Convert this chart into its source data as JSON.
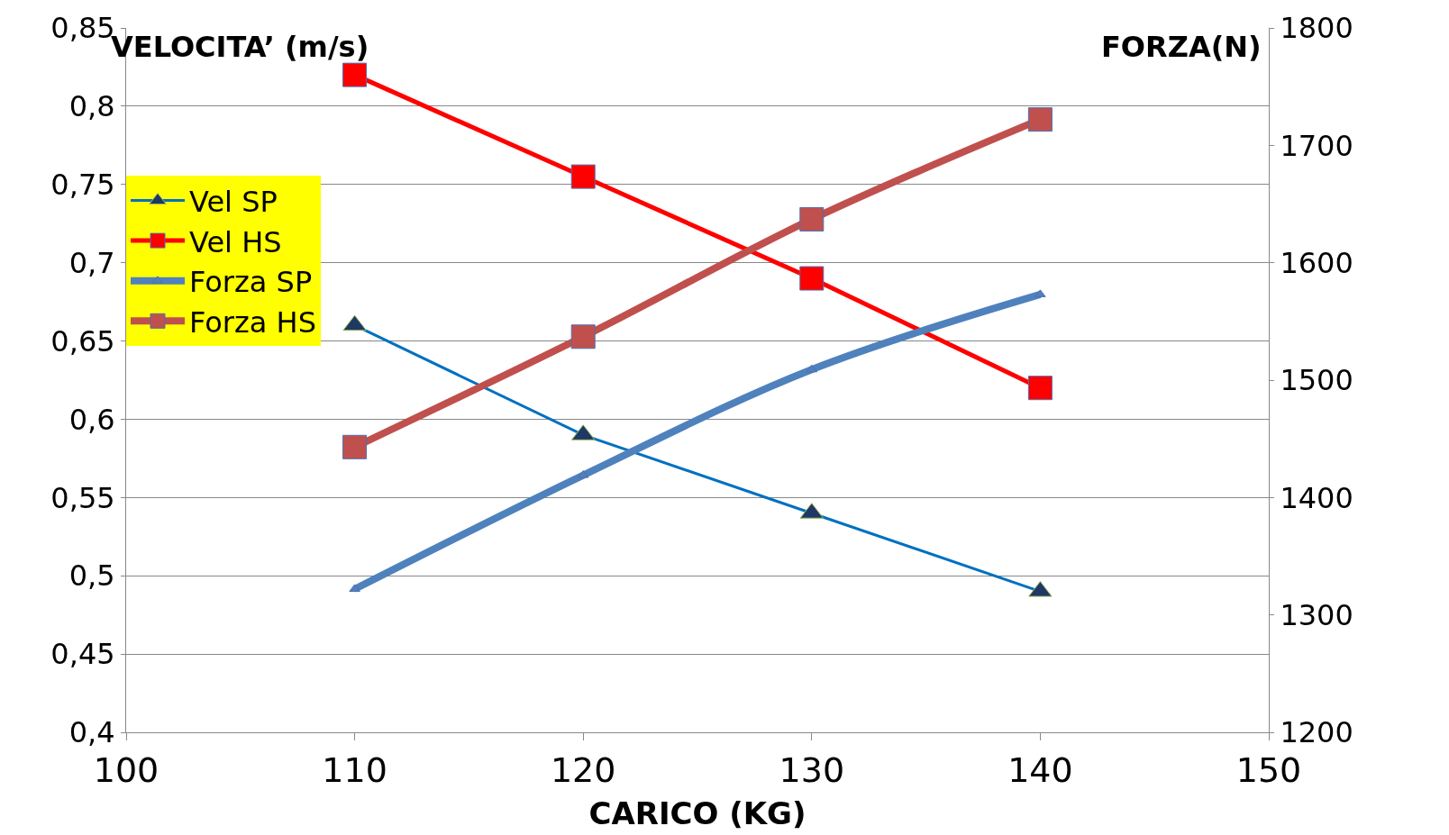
{
  "chart_data": {
    "type": "line",
    "xlabel": "CARICO (KG)",
    "ylabel": "VELOCITA’ (m/s)",
    "y2label": "FORZA(N)",
    "x": [
      110,
      120,
      130,
      140
    ],
    "xlim": [
      100,
      150
    ],
    "xticks": [
      100,
      110,
      120,
      130,
      140,
      150
    ],
    "ylim": [
      0.4,
      0.85
    ],
    "yticks": [
      {
        "value": 0.4,
        "label": "0,4"
      },
      {
        "value": 0.45,
        "label": "0,45"
      },
      {
        "value": 0.5,
        "label": "0,5"
      },
      {
        "value": 0.55,
        "label": "0,55"
      },
      {
        "value": 0.6,
        "label": "0,6"
      },
      {
        "value": 0.65,
        "label": "0,65"
      },
      {
        "value": 0.7,
        "label": "0,7"
      },
      {
        "value": 0.75,
        "label": "0,75"
      },
      {
        "value": 0.8,
        "label": "0,8"
      },
      {
        "value": 0.85,
        "label": "0,85"
      }
    ],
    "y2lim": [
      1200,
      1800
    ],
    "y2ticks": [
      1200,
      1300,
      1400,
      1500,
      1600,
      1700,
      1800
    ],
    "grid": "y",
    "legend": "top left",
    "series": [
      {
        "name": "Vel SP",
        "color": "#0070c0",
        "marker": "triangle",
        "values": [
          0.66,
          0.59,
          0.54,
          0.49
        ]
      },
      {
        "name": "Vel HS",
        "color": "#ff0000",
        "marker": "square",
        "values": [
          0.82,
          0.755,
          0.69,
          0.62
        ]
      },
      {
        "name": "Forza SP",
        "color": "#4f81bd",
        "marker": "triangle",
        "axis": "y2",
        "values": [
          1322,
          1419,
          1509,
          1573
        ]
      },
      {
        "name": "Forza HS",
        "color": "#c0504d",
        "marker": "square",
        "axis": "y2",
        "values": [
          1443,
          1537,
          1637,
          1722
        ]
      }
    ]
  }
}
